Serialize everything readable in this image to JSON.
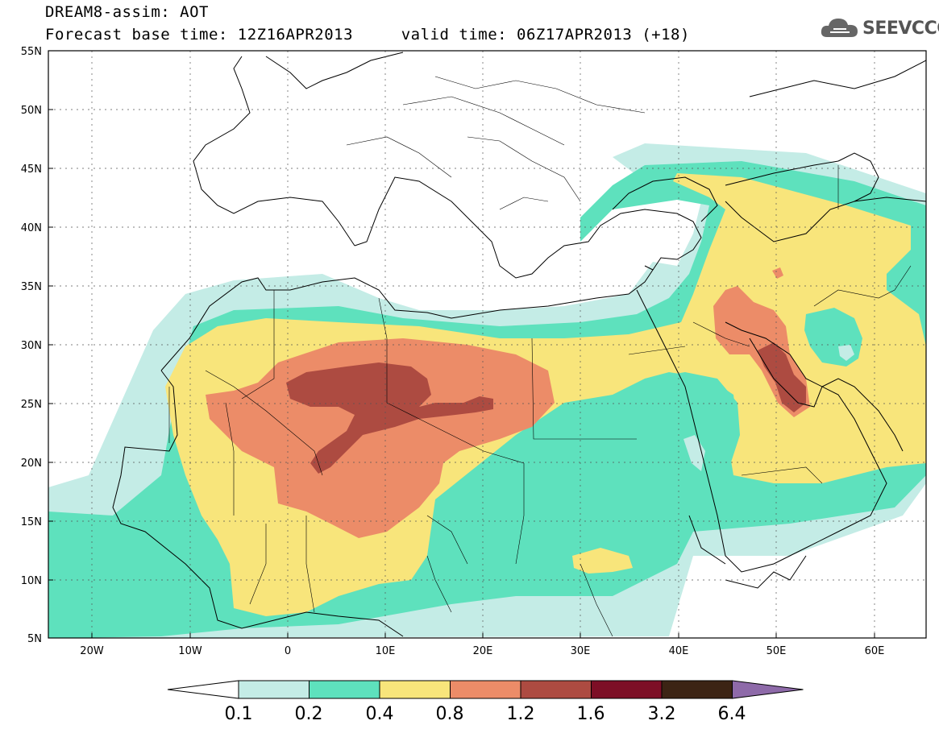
{
  "header": {
    "line1": "DREAM8-assim: AOT",
    "line2": "Forecast base time: 12Z16APR2013     valid time: 06Z17APR2013 (+18)",
    "logo_text": "SEEVCCC",
    "logo_icon": "cloud-icon"
  },
  "map": {
    "lon_labels": [
      "20W",
      "10W",
      "0",
      "10E",
      "20E",
      "30E",
      "40E",
      "50E",
      "60E"
    ],
    "lat_labels": [
      "55N",
      "50N",
      "45N",
      "40N",
      "35N",
      "30N",
      "25N",
      "20N",
      "15N",
      "10N",
      "5N"
    ],
    "lon_range": [
      -25,
      65
    ],
    "lat_range": [
      5,
      55
    ],
    "variable": "AOT"
  },
  "colorbar": {
    "labels": [
      "0.1",
      "0.2",
      "0.4",
      "0.8",
      "1.2",
      "1.6",
      "3.2",
      "6.4"
    ],
    "colors": [
      "#ffffff",
      "#c4ece6",
      "#5ee1bd",
      "#f8e57b",
      "#ec8c68",
      "#ad4b41",
      "#7d0f26",
      "#3c2414",
      "#8e6aa9"
    ]
  },
  "colors": {
    "c1": "#c4ece6",
    "c2": "#5ee1bd",
    "c3": "#f8e57b",
    "c4": "#ec8c68",
    "c5": "#ad4b41"
  }
}
